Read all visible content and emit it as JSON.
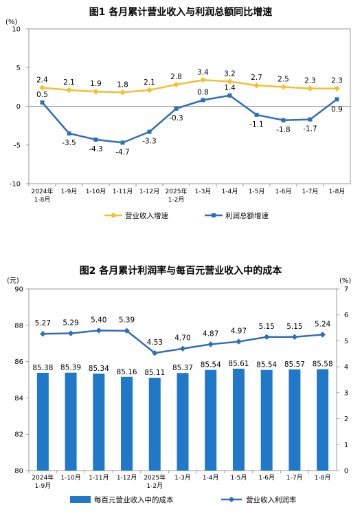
{
  "chart_data": [
    {
      "type": "line",
      "title": "图1  各月累计营业收入与利润总额同比增速",
      "ylabel": "(%)",
      "ylim": [
        -10,
        10
      ],
      "yticks": [
        -10,
        -5,
        0,
        5,
        10
      ],
      "categories": [
        "2024年\n1-8月",
        "1-9月",
        "1-10月",
        "1-11月",
        "1-12月",
        "2025年\n1-2月",
        "1-3月",
        "1-4月",
        "1-5月",
        "1-6月",
        "1-7月",
        "1-8月"
      ],
      "series": [
        {
          "name": "营业收入增速",
          "color": "#f2c12e",
          "values": [
            2.4,
            2.1,
            1.9,
            1.8,
            2.1,
            2.8,
            3.4,
            3.2,
            2.7,
            2.5,
            2.3,
            2.3
          ],
          "labels": [
            "2.4",
            "2.1",
            "1.9",
            "1.8",
            "2.1",
            "2.8",
            "3.4",
            "3.2",
            "2.7",
            "2.5",
            "2.3",
            "2.3"
          ]
        },
        {
          "name": "利润总额增速",
          "color": "#2f6eb5",
          "values": [
            0.5,
            -3.5,
            -4.3,
            -4.7,
            -3.3,
            -0.3,
            0.8,
            1.4,
            -1.1,
            -1.8,
            -1.7,
            0.9
          ],
          "labels": [
            "0.5",
            "-3.5",
            "-4.3",
            "-4.7",
            "-3.3",
            "-0.3",
            "0.8",
            "1.4",
            "-1.1",
            "-1.8",
            "-1.7",
            "0.9"
          ]
        }
      ],
      "legend": "bottom",
      "grid": false
    },
    {
      "type": "bar+line",
      "title": "图2  各月累计利润率与每百元营业收入中的成本",
      "ylabel": "(元)",
      "ylabel_right": "(%)",
      "ylim": [
        80,
        90
      ],
      "yticks": [
        80,
        82,
        84,
        86,
        88,
        90
      ],
      "ylim_right": [
        0,
        7
      ],
      "yticks_right": [
        0,
        1,
        2,
        3,
        4,
        5,
        6,
        7
      ],
      "categories": [
        "2024年\n1-9月",
        "1-10月",
        "1-11月",
        "1-12月",
        "2025年\n1-2月",
        "1-3月",
        "1-4月",
        "1-5月",
        "1-6月",
        "1-7月",
        "1-8月"
      ],
      "series": [
        {
          "name": "每百元营业收入中的成本",
          "type": "bar",
          "axis": "left",
          "color": "#1f78c8",
          "values": [
            85.38,
            85.39,
            85.34,
            85.16,
            85.11,
            85.37,
            85.54,
            85.61,
            85.54,
            85.57,
            85.58
          ],
          "labels": [
            "85.38",
            "85.39",
            "85.34",
            "85.16",
            "85.11",
            "85.37",
            "85.54",
            "85.61",
            "85.54",
            "85.57",
            "85.58"
          ]
        },
        {
          "name": "营业收入利润率",
          "type": "line",
          "axis": "right",
          "color": "#2f6eb5",
          "values": [
            5.27,
            5.29,
            5.4,
            5.39,
            4.53,
            4.7,
            4.87,
            4.97,
            5.15,
            5.15,
            5.24
          ],
          "labels": [
            "5.27",
            "5.29",
            "5.40",
            "5.39",
            "4.53",
            "4.70",
            "4.87",
            "4.97",
            "5.15",
            "5.15",
            "5.24"
          ]
        }
      ],
      "legend": "bottom",
      "grid": false
    }
  ]
}
